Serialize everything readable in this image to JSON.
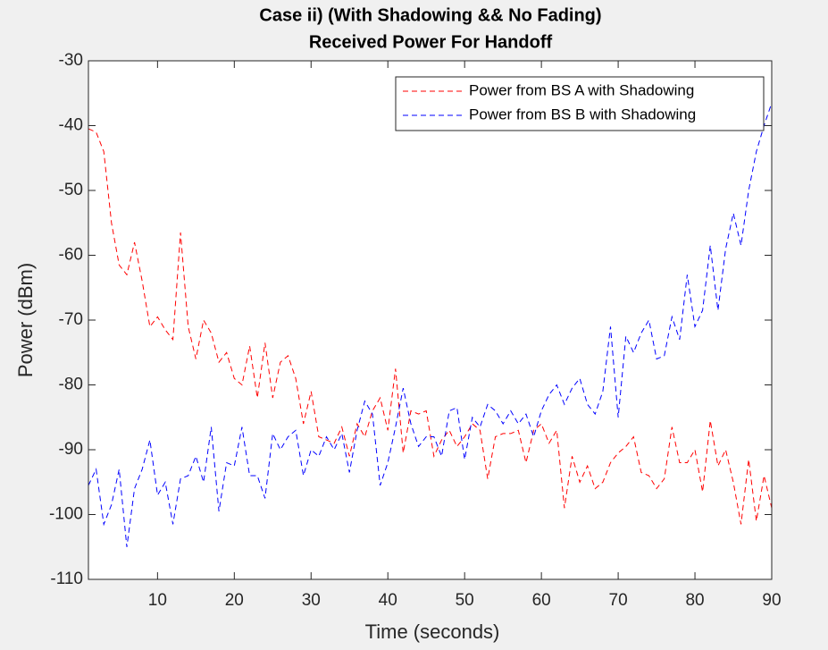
{
  "chart_data": {
    "type": "line",
    "title": [
      "Case ii) (With Shadowing && No Fading)",
      "Received Power For Handoff"
    ],
    "x_label": "Time (seconds)",
    "y_label": "Power (dBm)",
    "x": [
      1,
      2,
      3,
      4,
      5,
      6,
      7,
      8,
      9,
      10,
      11,
      12,
      13,
      14,
      15,
      16,
      17,
      18,
      19,
      20,
      21,
      22,
      23,
      24,
      25,
      26,
      27,
      28,
      29,
      30,
      31,
      32,
      33,
      34,
      35,
      36,
      37,
      38,
      39,
      40,
      41,
      42,
      43,
      44,
      45,
      46,
      47,
      48,
      49,
      50,
      51,
      52,
      53,
      54,
      55,
      56,
      57,
      58,
      59,
      60,
      61,
      62,
      63,
      64,
      65,
      66,
      67,
      68,
      69,
      70,
      71,
      72,
      73,
      74,
      75,
      76,
      77,
      78,
      79,
      80,
      81,
      82,
      83,
      84,
      85,
      86,
      87,
      88,
      89,
      90
    ],
    "series": [
      {
        "name": "Power from BS A with Shadowing",
        "color": "#ff0000",
        "values": [
          -40.5,
          -41,
          -44,
          -55,
          -61.5,
          -63,
          -58,
          -64,
          -71,
          -69.5,
          -71.5,
          -73,
          -56.5,
          -71,
          -76,
          -70,
          -72,
          -76.5,
          -75,
          -79,
          -80,
          -74,
          -82,
          -73.5,
          -82,
          -76.5,
          -75.5,
          -79,
          -86,
          -81,
          -88,
          -88.5,
          -89,
          -86.5,
          -91,
          -86,
          -88,
          -84,
          -82,
          -87,
          -77.5,
          -90.5,
          -84,
          -84.5,
          -84,
          -91,
          -88.5,
          -87,
          -89.5,
          -88,
          -86,
          -87,
          -94.5,
          -88,
          -87.5,
          -87.5,
          -87,
          -92,
          -87,
          -86,
          -89,
          -87,
          -99,
          -91,
          -95,
          -92.5,
          -96,
          -95,
          -92,
          -90.5,
          -89.5,
          -88,
          -93.5,
          -94,
          -96,
          -94.5,
          -86.5,
          -92,
          -92,
          -90,
          -96.5,
          -85.5,
          -92.5,
          -90,
          -95,
          -101.5,
          -91.5,
          -101,
          -94,
          -99
        ]
      },
      {
        "name": "Power from BS B with Shadowing",
        "color": "#0000ff",
        "values": [
          -95.5,
          -93,
          -101.5,
          -98.5,
          -93,
          -105,
          -96,
          -93,
          -88.5,
          -97,
          -95,
          -101.5,
          -94.5,
          -94,
          -91,
          -95,
          -86.5,
          -99.5,
          -92,
          -92.5,
          -86.5,
          -94,
          -94,
          -97.5,
          -87.5,
          -90,
          -88,
          -87,
          -94,
          -90,
          -91,
          -88,
          -90,
          -87.5,
          -93.5,
          -87,
          -82.5,
          -84.5,
          -95.5,
          -92,
          -86.5,
          -80.5,
          -86,
          -89.5,
          -88,
          -88,
          -91,
          -84,
          -83.5,
          -91.5,
          -85,
          -86.5,
          -83,
          -84,
          -86,
          -84,
          -86,
          -84.5,
          -88,
          -84,
          -81.5,
          -80,
          -83,
          -80.5,
          -79,
          -83,
          -84.5,
          -81,
          -71,
          -85,
          -72.5,
          -75,
          -72,
          -70,
          -76,
          -75.5,
          -69.5,
          -73,
          -63,
          -71,
          -68.5,
          -58.5,
          -68.5,
          -59,
          -53.5,
          -58.5,
          -50,
          -44,
          -40,
          -36.5
        ]
      }
    ],
    "xlim": [
      1,
      90
    ],
    "ylim": [
      -110,
      -30
    ],
    "xticks": [
      10,
      20,
      30,
      40,
      50,
      60,
      70,
      80,
      90
    ],
    "yticks": [
      -110,
      -100,
      -90,
      -80,
      -70,
      -60,
      -50,
      -40,
      -30
    ],
    "legend": "top-right"
  }
}
